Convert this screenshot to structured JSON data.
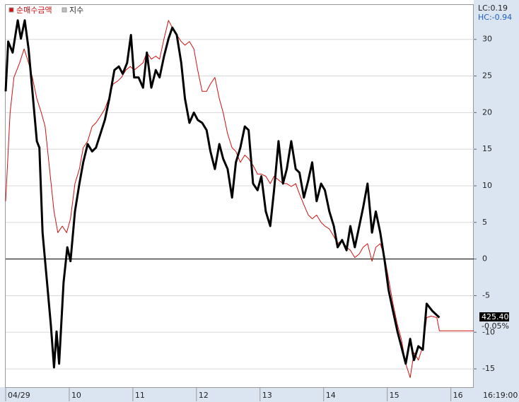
{
  "chart_data": {
    "type": "line",
    "series": [
      {
        "name": "순매수금액",
        "color": "#d01010",
        "width": 1,
        "x": [
          9.0,
          9.07,
          9.13,
          9.22,
          9.29,
          9.36,
          9.42,
          9.49,
          9.56,
          9.62,
          9.69,
          9.76,
          9.82,
          9.89,
          9.96,
          10.02,
          10.09,
          10.16,
          10.22,
          10.29,
          10.36,
          10.42,
          10.49,
          10.56,
          10.62,
          10.69,
          10.76,
          10.82,
          10.89,
          10.96,
          11.02,
          11.09,
          11.16,
          11.22,
          11.29,
          11.36,
          11.42,
          11.49,
          11.56,
          11.62,
          11.69,
          11.76,
          11.82,
          11.89,
          11.96,
          12.02,
          12.09,
          12.16,
          12.22,
          12.29,
          12.36,
          12.42,
          12.49,
          12.56,
          12.62,
          12.69,
          12.76,
          12.82,
          12.89,
          12.96,
          13.02,
          13.09,
          13.16,
          13.22,
          13.29,
          13.36,
          13.42,
          13.49,
          13.56,
          13.62,
          13.69,
          13.76,
          13.82,
          13.89,
          13.96,
          14.02,
          14.09,
          14.16,
          14.22,
          14.29,
          14.36,
          14.42,
          14.49,
          14.56,
          14.62,
          14.69,
          14.76,
          14.82,
          14.89,
          14.96,
          15.02,
          15.09,
          15.16,
          15.22,
          15.29,
          15.36,
          15.42,
          15.49,
          15.56,
          15.62,
          15.69,
          15.78,
          15.82,
          16.36
        ],
        "values": [
          7.9,
          20.0,
          24.8,
          26.8,
          28.7,
          26.8,
          24.8,
          21.9,
          20.0,
          18.1,
          12.3,
          6.5,
          3.6,
          4.5,
          3.6,
          5.5,
          10.3,
          12.3,
          15.2,
          16.1,
          18.1,
          18.6,
          19.5,
          20.5,
          21.9,
          23.9,
          24.3,
          24.8,
          25.8,
          26.3,
          25.8,
          26.3,
          26.8,
          28.2,
          27.3,
          27.7,
          27.3,
          30.1,
          32.6,
          31.6,
          30.6,
          29.7,
          29.2,
          29.7,
          28.7,
          25.8,
          22.9,
          22.9,
          23.9,
          24.8,
          21.9,
          20.0,
          17.1,
          15.2,
          14.7,
          13.2,
          14.2,
          13.7,
          12.8,
          11.6,
          11.6,
          11.3,
          10.3,
          11.3,
          10.8,
          10.3,
          10.3,
          9.9,
          10.3,
          8.9,
          7.4,
          6.0,
          5.5,
          6.0,
          5.0,
          4.5,
          4.1,
          3.1,
          2.1,
          2.6,
          1.6,
          1.2,
          0.2,
          0.7,
          1.6,
          2.1,
          -0.3,
          1.6,
          2.1,
          0.2,
          -2.7,
          -6.1,
          -9.0,
          -10.9,
          -14.3,
          -16.2,
          -12.8,
          -13.8,
          -11.9,
          -8.0,
          -7.8,
          -8.0,
          -9.8,
          -9.8
        ]
      },
      {
        "name": "지수",
        "color": "#000000",
        "width": 3,
        "x": [
          9.0,
          9.04,
          9.11,
          9.19,
          9.24,
          9.3,
          9.36,
          9.41,
          9.49,
          9.53,
          9.58,
          9.64,
          9.71,
          9.76,
          9.8,
          9.84,
          9.91,
          9.97,
          10.02,
          10.09,
          10.16,
          10.22,
          10.29,
          10.36,
          10.42,
          10.49,
          10.56,
          10.63,
          10.71,
          10.78,
          10.84,
          10.91,
          10.97,
          11.02,
          11.09,
          11.16,
          11.22,
          11.29,
          11.36,
          11.42,
          11.49,
          11.56,
          11.62,
          11.69,
          11.76,
          11.82,
          11.89,
          11.96,
          12.02,
          12.09,
          12.16,
          12.22,
          12.29,
          12.36,
          12.42,
          12.49,
          12.56,
          12.62,
          12.69,
          12.76,
          12.82,
          12.89,
          12.96,
          13.02,
          13.09,
          13.16,
          13.22,
          13.29,
          13.36,
          13.42,
          13.49,
          13.56,
          13.62,
          13.69,
          13.76,
          13.82,
          13.89,
          13.96,
          14.02,
          14.09,
          14.16,
          14.22,
          14.29,
          14.36,
          14.42,
          14.49,
          14.56,
          14.62,
          14.69,
          14.76,
          14.82,
          14.89,
          14.96,
          15.02,
          15.09,
          15.16,
          15.22,
          15.29,
          15.36,
          15.42,
          15.49,
          15.56,
          15.62,
          15.71,
          15.82
        ],
        "values": [
          22.9,
          29.7,
          28.2,
          32.6,
          30.1,
          32.6,
          28.7,
          23.9,
          16.1,
          15.2,
          3.6,
          -2.2,
          -9.0,
          -14.8,
          -9.9,
          -14.3,
          -3.2,
          1.6,
          -0.3,
          6.5,
          10.3,
          13.2,
          15.7,
          14.7,
          15.2,
          17.1,
          19.0,
          21.9,
          25.8,
          26.3,
          25.3,
          26.8,
          30.6,
          24.8,
          24.8,
          23.4,
          28.2,
          23.4,
          25.8,
          24.8,
          27.7,
          30.1,
          31.6,
          30.6,
          26.8,
          21.9,
          18.6,
          20.0,
          19.0,
          18.6,
          17.6,
          14.7,
          12.3,
          15.7,
          13.7,
          12.3,
          8.4,
          13.2,
          15.2,
          18.1,
          17.6,
          10.3,
          9.4,
          11.3,
          6.5,
          4.5,
          9.4,
          16.1,
          10.3,
          12.3,
          16.1,
          12.3,
          11.8,
          8.4,
          10.8,
          13.2,
          7.9,
          10.3,
          9.4,
          6.5,
          4.5,
          1.6,
          2.6,
          1.2,
          4.5,
          1.6,
          4.5,
          7.0,
          10.3,
          3.6,
          6.5,
          3.6,
          -0.3,
          -4.2,
          -7.1,
          -9.9,
          -11.9,
          -14.3,
          -10.9,
          -13.8,
          -11.9,
          -12.4,
          -6.1,
          -7.1,
          -8.0
        ]
      }
    ],
    "xlim": [
      9,
      16.36
    ],
    "xticks": [
      {
        "value": 9,
        "label": "04/29"
      },
      10,
      11,
      12,
      13,
      14,
      15,
      16
    ],
    "ylim": [
      -17.5,
      34.7
    ],
    "yticks": [
      -15,
      -10,
      -5,
      0,
      5,
      10,
      15,
      20,
      25,
      30
    ],
    "grid": true,
    "zero_line": true,
    "time_label": "16:19:00",
    "lc_label": "LC:0.19",
    "hc_label": "HC:-0.94",
    "current_value": "425.40",
    "current_change": "-0.05%"
  }
}
